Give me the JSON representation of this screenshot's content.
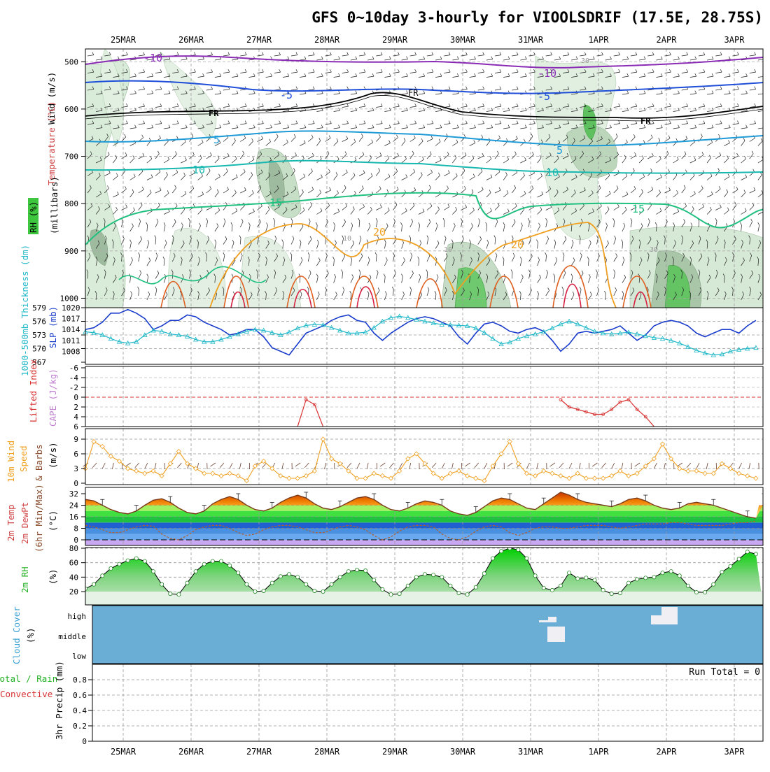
{
  "title": "GFS 0~10day 3-hourly for VIOOLSDRIF (17.5E, 28.75S)",
  "dates": [
    "25MAR",
    "26MAR",
    "27MAR",
    "28MAR",
    "29MAR",
    "30MAR",
    "31MAR",
    "1APR",
    "2APR",
    "3APR"
  ],
  "colors": {
    "slp": "#1a3ccc",
    "thickness": "#1fb8c8",
    "lifted_index": "#d83030",
    "wind10m": "#f0a020",
    "rh_fill": "#3ec63e",
    "cloud_bg": "#6aaed6",
    "cloud_fill": "#f0f0f4",
    "temp_line": "#7a3a1a",
    "dewpt_line": "#b06030"
  },
  "panels": {
    "profile": {
      "y_label_1": "Wind (m/s)",
      "y_label_2": "Temperature (°C)",
      "y_label_3": "RH (%)",
      "y_label_4": "(millibars)",
      "ticks": [
        "500",
        "600",
        "700",
        "800",
        "900",
        "1000"
      ],
      "isotherm_labels": [
        "-10",
        "-10",
        "-5",
        "-5",
        "FR",
        "FR",
        "FR",
        "5",
        "5",
        "10",
        "10",
        "15",
        "15",
        "20",
        "20",
        "30",
        "30",
        "10",
        "10"
      ]
    },
    "slp": {
      "left_label": "1000-500mb Thickness (dm)",
      "right_label": "SLP (mb)",
      "left_ticks": [
        "579",
        "576",
        "573",
        "570",
        "567"
      ],
      "right_ticks": [
        "1020",
        "1017",
        "1014",
        "1011",
        "1008"
      ]
    },
    "cape": {
      "label_1": "Lifted Index",
      "label_2": "CAPE (J/kg)",
      "ticks": [
        "-6",
        "-4",
        "-2",
        "0",
        "2",
        "4",
        "6"
      ]
    },
    "wind": {
      "label_1": "10m Wind",
      "label_2": "Speed",
      "label_3": "& Barbs",
      "unit": "(m/s)",
      "ticks": [
        "0",
        "3",
        "6",
        "9"
      ]
    },
    "temp": {
      "label_1": "2m Temp",
      "label_2": "2m DewPt",
      "label_3": "(6hr Min/Max)",
      "unit": "(°C)",
      "ticks": [
        "0",
        "8",
        "16",
        "24",
        "32"
      ]
    },
    "rh": {
      "label": "2m RH",
      "unit": "(%)",
      "ticks": [
        "20",
        "40",
        "60",
        "80"
      ]
    },
    "cloud": {
      "label": "Cloud Cover",
      "unit": "(%)",
      "levels": [
        "high",
        "middle",
        "low"
      ]
    },
    "precip": {
      "label_1": "Total / Rain",
      "label_2": "Convective",
      "label_3": "3hr Precip (mm)",
      "ticks": [
        "0",
        "0.2",
        "0.4",
        "0.6",
        "0.8"
      ],
      "run_total": "Run Total = 0"
    }
  },
  "chart_data": [
    {
      "type": "line",
      "title": "1000-500mb Thickness / SLP",
      "x": [
        "24MAR12",
        "24MAR15",
        "24MAR18",
        "24MAR21",
        "25MAR00",
        "25MAR03",
        "25MAR06",
        "25MAR09",
        "25MAR12",
        "25MAR15",
        "25MAR18",
        "25MAR21",
        "26MAR00",
        "26MAR03",
        "26MAR06",
        "26MAR09",
        "26MAR12",
        "26MAR15",
        "26MAR18",
        "26MAR21",
        "27MAR00",
        "27MAR03",
        "27MAR06",
        "27MAR09",
        "27MAR12",
        "27MAR15",
        "27MAR18",
        "27MAR21",
        "28MAR00",
        "28MAR03",
        "28MAR06",
        "28MAR09",
        "28MAR12",
        "28MAR15",
        "28MAR18",
        "28MAR21",
        "29MAR00",
        "29MAR03",
        "29MAR06",
        "29MAR09",
        "29MAR12",
        "29MAR15",
        "29MAR18",
        "29MAR21",
        "30MAR00",
        "30MAR03",
        "30MAR06",
        "30MAR09",
        "30MAR12",
        "30MAR15",
        "30MAR18",
        "30MAR21",
        "31MAR00",
        "31MAR03",
        "31MAR06",
        "31MAR09",
        "31MAR12",
        "31MAR15",
        "31MAR18",
        "31MAR21",
        "1APR00",
        "1APR03",
        "1APR06",
        "1APR09",
        "1APR12",
        "1APR15",
        "1APR18",
        "1APR21",
        "2APR00",
        "2APR03",
        "2APR06",
        "2APR09",
        "2APR12",
        "2APR15",
        "2APR18",
        "2APR21",
        "3APR00",
        "3APR03",
        "3APR06",
        "3APR09"
      ],
      "series": [
        {
          "name": "SLP (mb)",
          "values": [
            1014,
            1014.5,
            1016,
            1018.5,
            1018.5,
            1019.5,
            1018.5,
            1017,
            1014,
            1015,
            1016.5,
            1016.5,
            1018,
            1017.5,
            1016,
            1015,
            1014,
            1012.5,
            1013,
            1014,
            1014,
            1012,
            1009,
            1008,
            1007,
            1010,
            1013,
            1014,
            1015,
            1016.5,
            1017.5,
            1018,
            1016.5,
            1016,
            1013,
            1011,
            1013,
            1014.5,
            1016,
            1017,
            1017.5,
            1017,
            1016,
            1015,
            1012,
            1010,
            1013,
            1015.5,
            1016,
            1015,
            1013.5,
            1013,
            1014,
            1014.5,
            1013.5,
            1011,
            1008,
            1010,
            1013,
            1013.5,
            1013,
            1013.5,
            1014,
            1015,
            1013,
            1011,
            1012.5,
            1015,
            1016,
            1016.5,
            1016,
            1015,
            1013,
            1012,
            1013,
            1014,
            1014,
            1013,
            1015,
            1016.5
          ]
        },
        {
          "name": "1000-500mb Thickness (dm)",
          "values": [
            573.7,
            573.5,
            573,
            572.2,
            571.5,
            571.2,
            571.5,
            573,
            574,
            573.8,
            573.2,
            573,
            572.7,
            572,
            571.5,
            571.5,
            572,
            572.6,
            573.2,
            573.8,
            574.2,
            574,
            573.5,
            573,
            573.6,
            574.5,
            575.1,
            575.3,
            575.2,
            574.6,
            574,
            573.4,
            573.4,
            573.6,
            574.6,
            576,
            576.8,
            577.1,
            576.8,
            576.4,
            576,
            575.6,
            575.3,
            575.2,
            575.1,
            575,
            574.5,
            573.5,
            572.2,
            571,
            571.4,
            572.2,
            572.8,
            573.2,
            573.7,
            574.5,
            575.4,
            576,
            575.4,
            574.6,
            573.8,
            573.4,
            573.2,
            573.4,
            573.6,
            573.2,
            572.8,
            572.4,
            572.2,
            571.8,
            571.2,
            570.4,
            569.6,
            569,
            568.6,
            568.8,
            569.4,
            569.8,
            570,
            570.2
          ]
        }
      ],
      "ylim_left": [
        567,
        579
      ],
      "ylim_right": [
        1005,
        1020
      ]
    },
    {
      "type": "line",
      "title": "Lifted Index",
      "x": [
        "27MAR15",
        "27MAR18",
        "27MAR21",
        "28MAR00",
        "31MAR12",
        "31MAR15",
        "31MAR18",
        "31MAR21",
        "1APR00",
        "1APR03",
        "1APR06",
        "1APR09",
        "1APR12",
        "1APR15",
        "1APR18",
        "1APR21"
      ],
      "series": [
        {
          "name": "Lifted Index",
          "values": [
            6,
            0.5,
            1.5,
            6,
            0.5,
            2,
            2.5,
            3,
            3.5,
            3.5,
            2.5,
            1,
            0.5,
            2.5,
            4,
            6
          ]
        }
      ],
      "ylim": [
        -6,
        6
      ]
    },
    {
      "type": "line",
      "title": "10m Wind Speed",
      "x": "3-hourly from 24MAR12 to 3APR09",
      "series": [
        {
          "name": "10m Wind Speed (m/s)",
          "values": [
            3,
            8.5,
            7.5,
            5.5,
            4.5,
            3,
            2.5,
            2,
            2.5,
            1.5,
            4,
            6.5,
            4,
            3,
            2,
            2,
            1.5,
            2,
            1.5,
            0.5,
            3.5,
            4.5,
            3,
            1.5,
            1,
            1,
            1.5,
            2.5,
            9,
            5,
            4,
            2.5,
            1,
            1,
            2,
            1.5,
            1,
            2.5,
            5,
            6,
            4,
            2,
            1,
            2,
            2.5,
            1.5,
            1,
            0.5,
            3.5,
            6,
            8.5,
            4,
            2,
            1.5,
            2.5,
            2,
            1.5,
            1,
            2,
            1,
            1,
            1,
            1.5,
            2.5,
            1.5,
            2,
            3.5,
            5,
            8,
            5,
            3,
            2.5,
            2.5,
            2,
            2,
            4,
            3,
            2,
            1.5,
            1
          ]
        }
      ],
      "ylim": [
        0,
        11
      ]
    },
    {
      "type": "area",
      "title": "2m Temp / 2m DewPt",
      "x": "3-hourly from 24MAR12 to 3APR09",
      "series": [
        {
          "name": "2m Temp (°C)",
          "values": [
            28,
            27,
            24,
            21,
            19,
            18,
            20,
            24,
            27.5,
            28.5,
            26,
            22,
            19,
            18,
            20,
            25,
            28,
            30,
            28,
            24,
            21,
            20,
            22,
            26,
            29,
            31,
            29,
            25,
            22,
            21,
            23,
            26,
            29,
            30,
            28,
            24,
            21,
            20,
            22,
            25,
            27,
            26,
            24,
            20,
            18,
            17,
            19,
            23,
            27,
            29,
            28,
            25,
            22,
            21,
            25,
            29,
            33,
            31,
            28,
            26,
            25,
            24,
            23,
            25,
            28,
            29,
            27,
            24,
            22,
            21,
            22,
            25,
            26,
            25,
            24,
            22,
            20,
            18,
            16,
            15
          ]
        },
        {
          "name": "2m DewPt (°C)",
          "values": [
            10,
            9,
            7,
            5,
            5,
            7,
            9,
            10,
            9.5,
            4,
            1,
            0,
            3,
            7,
            9,
            10,
            10,
            8,
            5,
            3,
            4,
            7,
            9,
            10,
            10,
            9,
            7,
            5,
            5,
            7,
            9,
            10,
            9,
            7,
            3,
            0,
            2,
            6,
            9,
            10,
            10,
            9,
            4,
            1,
            0,
            2,
            6,
            9,
            10,
            9,
            5,
            3,
            5,
            8,
            9,
            9,
            8,
            8,
            9,
            10,
            10,
            10,
            9,
            8,
            9,
            10,
            11,
            11,
            11,
            12,
            12,
            11,
            10,
            10,
            10,
            10,
            11,
            12,
            12,
            13
          ]
        }
      ],
      "ylim": [
        -4,
        36
      ]
    },
    {
      "type": "area",
      "title": "2m RH",
      "x": "3-hourly from 24MAR12 to 3APR09",
      "series": [
        {
          "name": "2m RH (%)",
          "values": [
            24,
            30,
            42,
            52,
            58,
            63,
            66,
            62,
            48,
            30,
            17,
            16,
            32,
            48,
            58,
            62,
            62,
            56,
            46,
            30,
            20,
            21,
            32,
            41,
            44,
            40,
            30,
            21,
            20,
            30,
            40,
            48,
            50,
            49,
            36,
            23,
            16,
            17,
            28,
            40,
            44,
            43,
            40,
            28,
            18,
            16,
            26,
            45,
            66,
            76,
            80,
            78,
            66,
            42,
            25,
            22,
            28,
            46,
            38,
            39,
            36,
            22,
            17,
            18,
            32,
            37,
            39,
            40,
            46,
            48,
            42,
            28,
            19,
            19,
            30,
            47,
            55,
            65,
            75,
            72
          ]
        }
      ],
      "ylim": [
        10,
        85
      ]
    },
    {
      "type": "bar",
      "title": "3hr Precip",
      "series": [
        {
          "name": "3hr Precip (mm)",
          "values": []
        }
      ],
      "ylim": [
        0,
        0.95
      ]
    }
  ]
}
